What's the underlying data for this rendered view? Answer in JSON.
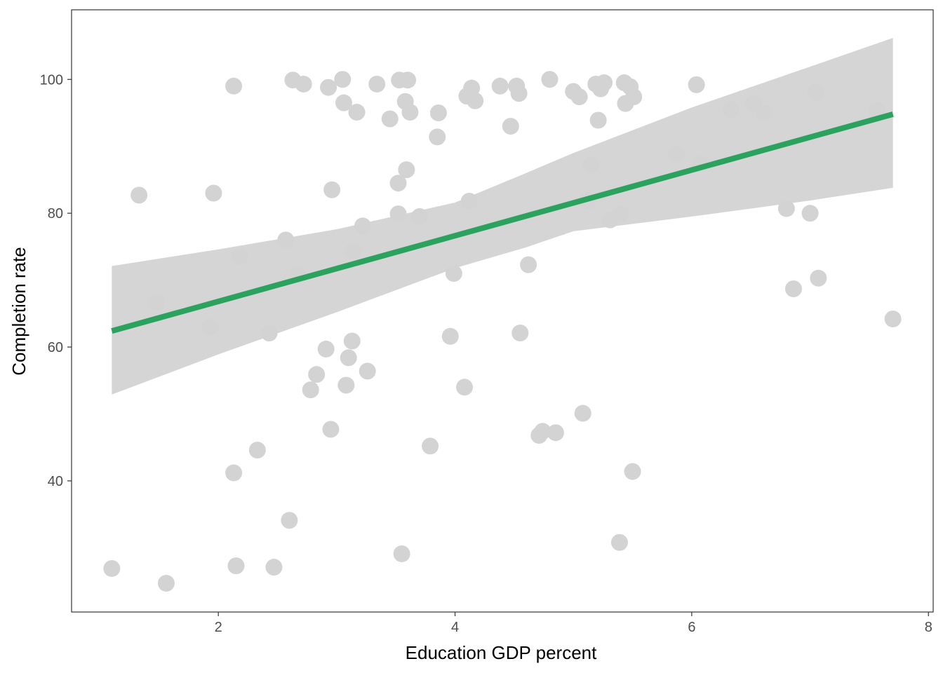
{
  "chart_data": {
    "type": "scatter",
    "xlabel": "Education GDP percent",
    "ylabel": "Completion rate",
    "xlim": [
      0.76,
      8.04
    ],
    "ylim": [
      20.4,
      110.4
    ],
    "x_ticks": [
      2,
      4,
      6,
      8
    ],
    "y_ticks": [
      40,
      60,
      80,
      100
    ],
    "grid": false,
    "colors": {
      "points": "#d3d3d3",
      "fit_line": "#2ca25f",
      "ribbon": "#d3d3d3",
      "frame": "#333333"
    },
    "points": [
      {
        "x": 1.1,
        "y": 26.9
      },
      {
        "x": 1.33,
        "y": 82.7
      },
      {
        "x": 1.48,
        "y": 66.7
      },
      {
        "x": 1.56,
        "y": 24.7
      },
      {
        "x": 1.93,
        "y": 63.0
      },
      {
        "x": 1.96,
        "y": 83.0
      },
      {
        "x": 2.13,
        "y": 99.0
      },
      {
        "x": 2.13,
        "y": 41.2
      },
      {
        "x": 2.15,
        "y": 27.3
      },
      {
        "x": 2.18,
        "y": 73.5
      },
      {
        "x": 2.33,
        "y": 44.6
      },
      {
        "x": 2.43,
        "y": 62.1
      },
      {
        "x": 2.47,
        "y": 27.1
      },
      {
        "x": 2.57,
        "y": 76.0
      },
      {
        "x": 2.6,
        "y": 34.1
      },
      {
        "x": 2.63,
        "y": 99.9
      },
      {
        "x": 2.67,
        "y": 70.8
      },
      {
        "x": 2.72,
        "y": 99.3
      },
      {
        "x": 2.78,
        "y": 53.6
      },
      {
        "x": 2.83,
        "y": 55.9
      },
      {
        "x": 2.91,
        "y": 59.7
      },
      {
        "x": 2.93,
        "y": 98.8
      },
      {
        "x": 2.95,
        "y": 47.7
      },
      {
        "x": 2.96,
        "y": 83.5
      },
      {
        "x": 3.05,
        "y": 100.0
      },
      {
        "x": 3.06,
        "y": 96.5
      },
      {
        "x": 3.08,
        "y": 54.3
      },
      {
        "x": 3.1,
        "y": 58.4
      },
      {
        "x": 3.13,
        "y": 60.9
      },
      {
        "x": 3.14,
        "y": 74.4
      },
      {
        "x": 3.17,
        "y": 95.1
      },
      {
        "x": 3.22,
        "y": 78.1
      },
      {
        "x": 3.26,
        "y": 56.4
      },
      {
        "x": 3.34,
        "y": 99.3
      },
      {
        "x": 3.45,
        "y": 94.1
      },
      {
        "x": 3.52,
        "y": 79.9
      },
      {
        "x": 3.52,
        "y": 84.5
      },
      {
        "x": 3.53,
        "y": 99.9
      },
      {
        "x": 3.55,
        "y": 29.1
      },
      {
        "x": 3.58,
        "y": 96.7
      },
      {
        "x": 3.59,
        "y": 86.5
      },
      {
        "x": 3.6,
        "y": 99.9
      },
      {
        "x": 3.62,
        "y": 95.1
      },
      {
        "x": 3.7,
        "y": 79.5
      },
      {
        "x": 3.79,
        "y": 45.2
      },
      {
        "x": 3.85,
        "y": 91.4
      },
      {
        "x": 3.86,
        "y": 95.0
      },
      {
        "x": 3.96,
        "y": 61.6
      },
      {
        "x": 3.99,
        "y": 71.0
      },
      {
        "x": 4.08,
        "y": 54.0
      },
      {
        "x": 4.1,
        "y": 97.5
      },
      {
        "x": 4.12,
        "y": 81.8
      },
      {
        "x": 4.14,
        "y": 98.7
      },
      {
        "x": 4.17,
        "y": 96.8
      },
      {
        "x": 4.38,
        "y": 99.0
      },
      {
        "x": 4.47,
        "y": 93.0
      },
      {
        "x": 4.52,
        "y": 99.0
      },
      {
        "x": 4.54,
        "y": 97.9
      },
      {
        "x": 4.55,
        "y": 62.1
      },
      {
        "x": 4.62,
        "y": 72.3
      },
      {
        "x": 4.71,
        "y": 46.8
      },
      {
        "x": 4.74,
        "y": 47.4
      },
      {
        "x": 4.8,
        "y": 100.0
      },
      {
        "x": 4.85,
        "y": 47.2
      },
      {
        "x": 5.0,
        "y": 98.2
      },
      {
        "x": 5.05,
        "y": 97.4
      },
      {
        "x": 5.08,
        "y": 50.1
      },
      {
        "x": 5.12,
        "y": 81.8
      },
      {
        "x": 5.15,
        "y": 87.2
      },
      {
        "x": 5.19,
        "y": 99.3
      },
      {
        "x": 5.21,
        "y": 93.9
      },
      {
        "x": 5.23,
        "y": 98.6
      },
      {
        "x": 5.26,
        "y": 99.5
      },
      {
        "x": 5.31,
        "y": 79.0
      },
      {
        "x": 5.39,
        "y": 30.8
      },
      {
        "x": 5.4,
        "y": 79.9
      },
      {
        "x": 5.43,
        "y": 99.5
      },
      {
        "x": 5.44,
        "y": 96.4
      },
      {
        "x": 5.48,
        "y": 98.9
      },
      {
        "x": 5.5,
        "y": 41.4
      },
      {
        "x": 5.51,
        "y": 97.4
      },
      {
        "x": 5.87,
        "y": 88.9
      },
      {
        "x": 6.04,
        "y": 99.2
      },
      {
        "x": 6.07,
        "y": 87.3
      },
      {
        "x": 6.33,
        "y": 95.5
      },
      {
        "x": 6.52,
        "y": 96.4
      },
      {
        "x": 6.61,
        "y": 95.0
      },
      {
        "x": 6.8,
        "y": 80.7
      },
      {
        "x": 6.86,
        "y": 68.7
      },
      {
        "x": 7.0,
        "y": 80.0
      },
      {
        "x": 7.05,
        "y": 98.1
      },
      {
        "x": 7.07,
        "y": 70.3
      },
      {
        "x": 7.56,
        "y": 95.4
      },
      {
        "x": 7.7,
        "y": 64.2
      }
    ],
    "fit_line": {
      "x": [
        1.1,
        7.7
      ],
      "y": [
        62.4,
        94.8
      ]
    },
    "confidence_band": {
      "x": [
        1.1,
        2.0,
        3.0,
        4.0,
        4.6,
        5.0,
        6.0,
        7.0,
        7.7
      ],
      "upper": [
        72.1,
        74.6,
        77.6,
        81.6,
        86.0,
        89.0,
        95.8,
        101.9,
        106.2
      ],
      "lower": [
        52.9,
        58.9,
        65.2,
        71.8,
        74.9,
        77.3,
        79.5,
        81.9,
        83.8
      ]
    }
  }
}
